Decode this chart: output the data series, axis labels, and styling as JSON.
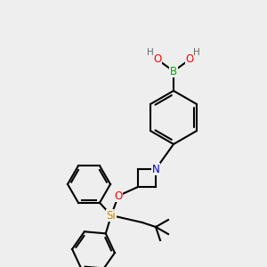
{
  "bg_color": "#eeeeee",
  "bond_color": "#000000",
  "bond_width": 1.5,
  "atom_colors": {
    "B": "#00aa00",
    "O": "#ff0000",
    "N": "#0000cc",
    "Si": "#cc8800",
    "H": "#666666",
    "C": "#000000"
  },
  "font_size": 8.5
}
